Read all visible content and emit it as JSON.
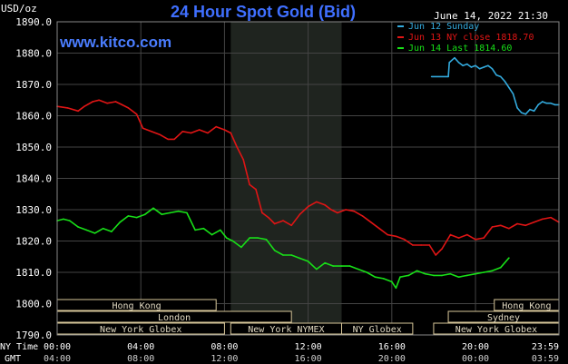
{
  "header": {
    "unit": "USD/oz",
    "title": "24 Hour Spot Gold (Bid)",
    "timestamp": "June 14, 2022 21:30",
    "watermark": "www.kitco.com"
  },
  "colors": {
    "background": "#000000",
    "title": "#3f6fff",
    "watermark": "#4a7dff",
    "grid": "#444444",
    "market_shade": "#1f241f",
    "sunday": "#33aadd",
    "ny_close": "#e01515",
    "last": "#18e018",
    "market_box_border": "#d8c79a",
    "axis_text": "#ffffff"
  },
  "chart_data": {
    "type": "line",
    "title": "24 Hour Spot Gold (Bid)",
    "ylabel": "USD/oz",
    "xlabel": "",
    "ylim": [
      1790,
      1890
    ],
    "grid": true,
    "legend_position": "top-right",
    "y_ticks": [
      "1790.0",
      "1800.0",
      "1810.0",
      "1820.0",
      "1830.0",
      "1840.0",
      "1850.0",
      "1860.0",
      "1870.0",
      "1880.0",
      "1890.0"
    ],
    "x_ticks_ny": [
      "00:00",
      "04:00",
      "08:00",
      "12:00",
      "16:00",
      "20:00",
      "23:59"
    ],
    "x_ticks_gmt": [
      "04:00",
      "08:00",
      "12:00",
      "16:00",
      "20:00",
      "00:00",
      "03:59"
    ],
    "axis_row_labels": {
      "ny": "NY Time",
      "gmt": "GMT"
    },
    "market_hours_shade": [
      8.3,
      13.6
    ],
    "series": [
      {
        "name": "Jun 12 Sunday",
        "color_key": "sunday",
        "x": [
          17.9,
          18.7,
          18.75,
          19.0,
          19.2,
          19.4,
          19.6,
          19.8,
          20.0,
          20.2,
          20.4,
          20.6,
          20.8,
          21.0,
          21.2,
          21.4,
          21.6,
          21.8,
          22.0,
          22.2,
          22.4,
          22.6,
          22.8,
          23.0,
          23.2,
          23.4,
          23.6,
          23.8,
          23.99
        ],
        "y": [
          1872.5,
          1872.5,
          1877.0,
          1878.5,
          1877.0,
          1876.0,
          1876.5,
          1875.5,
          1876.0,
          1875.0,
          1875.5,
          1876.0,
          1875.0,
          1873.0,
          1872.5,
          1871.0,
          1869.0,
          1867.0,
          1862.5,
          1861.0,
          1860.5,
          1862.0,
          1861.5,
          1863.5,
          1864.5,
          1864.0,
          1864.0,
          1863.5,
          1863.5
        ]
      },
      {
        "name": "Jun 13 NY close 1818.70",
        "color_key": "ny_close",
        "x": [
          0.0,
          0.5,
          1.0,
          1.3,
          1.7,
          2.0,
          2.4,
          2.8,
          3.1,
          3.4,
          3.8,
          4.1,
          4.5,
          4.9,
          5.3,
          5.6,
          6.0,
          6.4,
          6.8,
          7.2,
          7.6,
          8.0,
          8.3,
          8.6,
          8.9,
          9.2,
          9.5,
          9.8,
          10.1,
          10.4,
          10.8,
          11.2,
          11.6,
          12.0,
          12.4,
          12.8,
          13.1,
          13.4,
          13.8,
          14.2,
          14.6,
          15.0,
          15.4,
          15.8,
          16.2,
          16.6,
          17.0,
          17.4,
          17.8,
          18.1,
          18.4,
          18.8,
          19.2,
          19.6,
          20.0,
          20.4,
          20.8,
          21.2,
          21.6,
          22.0,
          22.4,
          22.8,
          23.2,
          23.6,
          23.99
        ],
        "y": [
          1863.0,
          1862.5,
          1861.5,
          1863.0,
          1864.5,
          1865.0,
          1864.0,
          1864.5,
          1863.5,
          1862.5,
          1860.5,
          1856.0,
          1855.0,
          1854.0,
          1852.5,
          1852.5,
          1855.0,
          1854.5,
          1855.5,
          1854.5,
          1856.5,
          1855.5,
          1854.5,
          1850.0,
          1846.0,
          1838.0,
          1836.5,
          1829.0,
          1827.5,
          1825.5,
          1826.5,
          1825.0,
          1828.5,
          1831.0,
          1832.5,
          1831.5,
          1830.0,
          1829.0,
          1830.0,
          1829.5,
          1828.0,
          1826.0,
          1824.0,
          1822.0,
          1821.5,
          1820.5,
          1818.7,
          1818.7,
          1818.7,
          1815.5,
          1817.5,
          1822.0,
          1821.0,
          1822.0,
          1820.5,
          1821.0,
          1824.5,
          1825.0,
          1824.0,
          1825.5,
          1825.0,
          1826.0,
          1827.0,
          1827.5,
          1826.0
        ]
      },
      {
        "name": "Jun 14 Last 1814.60",
        "color_key": "last",
        "x": [
          0.0,
          0.3,
          0.6,
          1.0,
          1.4,
          1.8,
          2.2,
          2.6,
          3.0,
          3.4,
          3.8,
          4.2,
          4.6,
          5.0,
          5.4,
          5.8,
          6.2,
          6.6,
          7.0,
          7.4,
          7.8,
          8.1,
          8.4,
          8.8,
          9.2,
          9.6,
          10.0,
          10.4,
          10.8,
          11.2,
          11.6,
          12.0,
          12.4,
          12.8,
          13.2,
          13.6,
          14.0,
          14.4,
          14.8,
          15.2,
          15.6,
          16.0,
          16.2,
          16.4,
          16.8,
          17.2,
          17.6,
          18.0,
          18.4,
          18.8,
          19.2,
          19.6,
          20.0,
          20.4,
          20.8,
          21.2,
          21.6
        ],
        "y": [
          1826.5,
          1827.0,
          1826.5,
          1824.5,
          1823.5,
          1822.5,
          1824.0,
          1823.0,
          1826.0,
          1828.0,
          1827.5,
          1828.5,
          1830.5,
          1828.5,
          1829.0,
          1829.5,
          1829.0,
          1823.5,
          1824.0,
          1822.0,
          1823.5,
          1821.0,
          1820.0,
          1818.0,
          1821.0,
          1821.0,
          1820.5,
          1817.0,
          1815.5,
          1815.5,
          1814.5,
          1813.5,
          1811.0,
          1813.0,
          1812.0,
          1812.0,
          1812.0,
          1811.0,
          1810.0,
          1808.5,
          1808.0,
          1807.0,
          1805.0,
          1808.5,
          1809.0,
          1810.5,
          1809.5,
          1809.0,
          1809.0,
          1809.5,
          1808.5,
          1809.0,
          1809.5,
          1810.0,
          1810.5,
          1811.5,
          1814.6
        ]
      }
    ]
  },
  "markets": {
    "row1": [
      {
        "label": "Hong Kong",
        "start": 0.0,
        "end": 7.6
      },
      {
        "label": "Hong Kong",
        "start": 20.9,
        "end": 23.99
      }
    ],
    "row2": [
      {
        "label": "London",
        "start": 0.0,
        "end": 11.2
      },
      {
        "label": "Sydney",
        "start": 18.7,
        "end": 23.99
      }
    ],
    "row3": [
      {
        "label": "New York Globex",
        "start": 0.0,
        "end": 8.0
      },
      {
        "label": "New York NYMEX",
        "start": 8.3,
        "end": 13.6
      },
      {
        "label": "NY Globex",
        "start": 13.6,
        "end": 17.0
      },
      {
        "label": "New York Globex",
        "start": 18.0,
        "end": 23.99
      }
    ]
  }
}
